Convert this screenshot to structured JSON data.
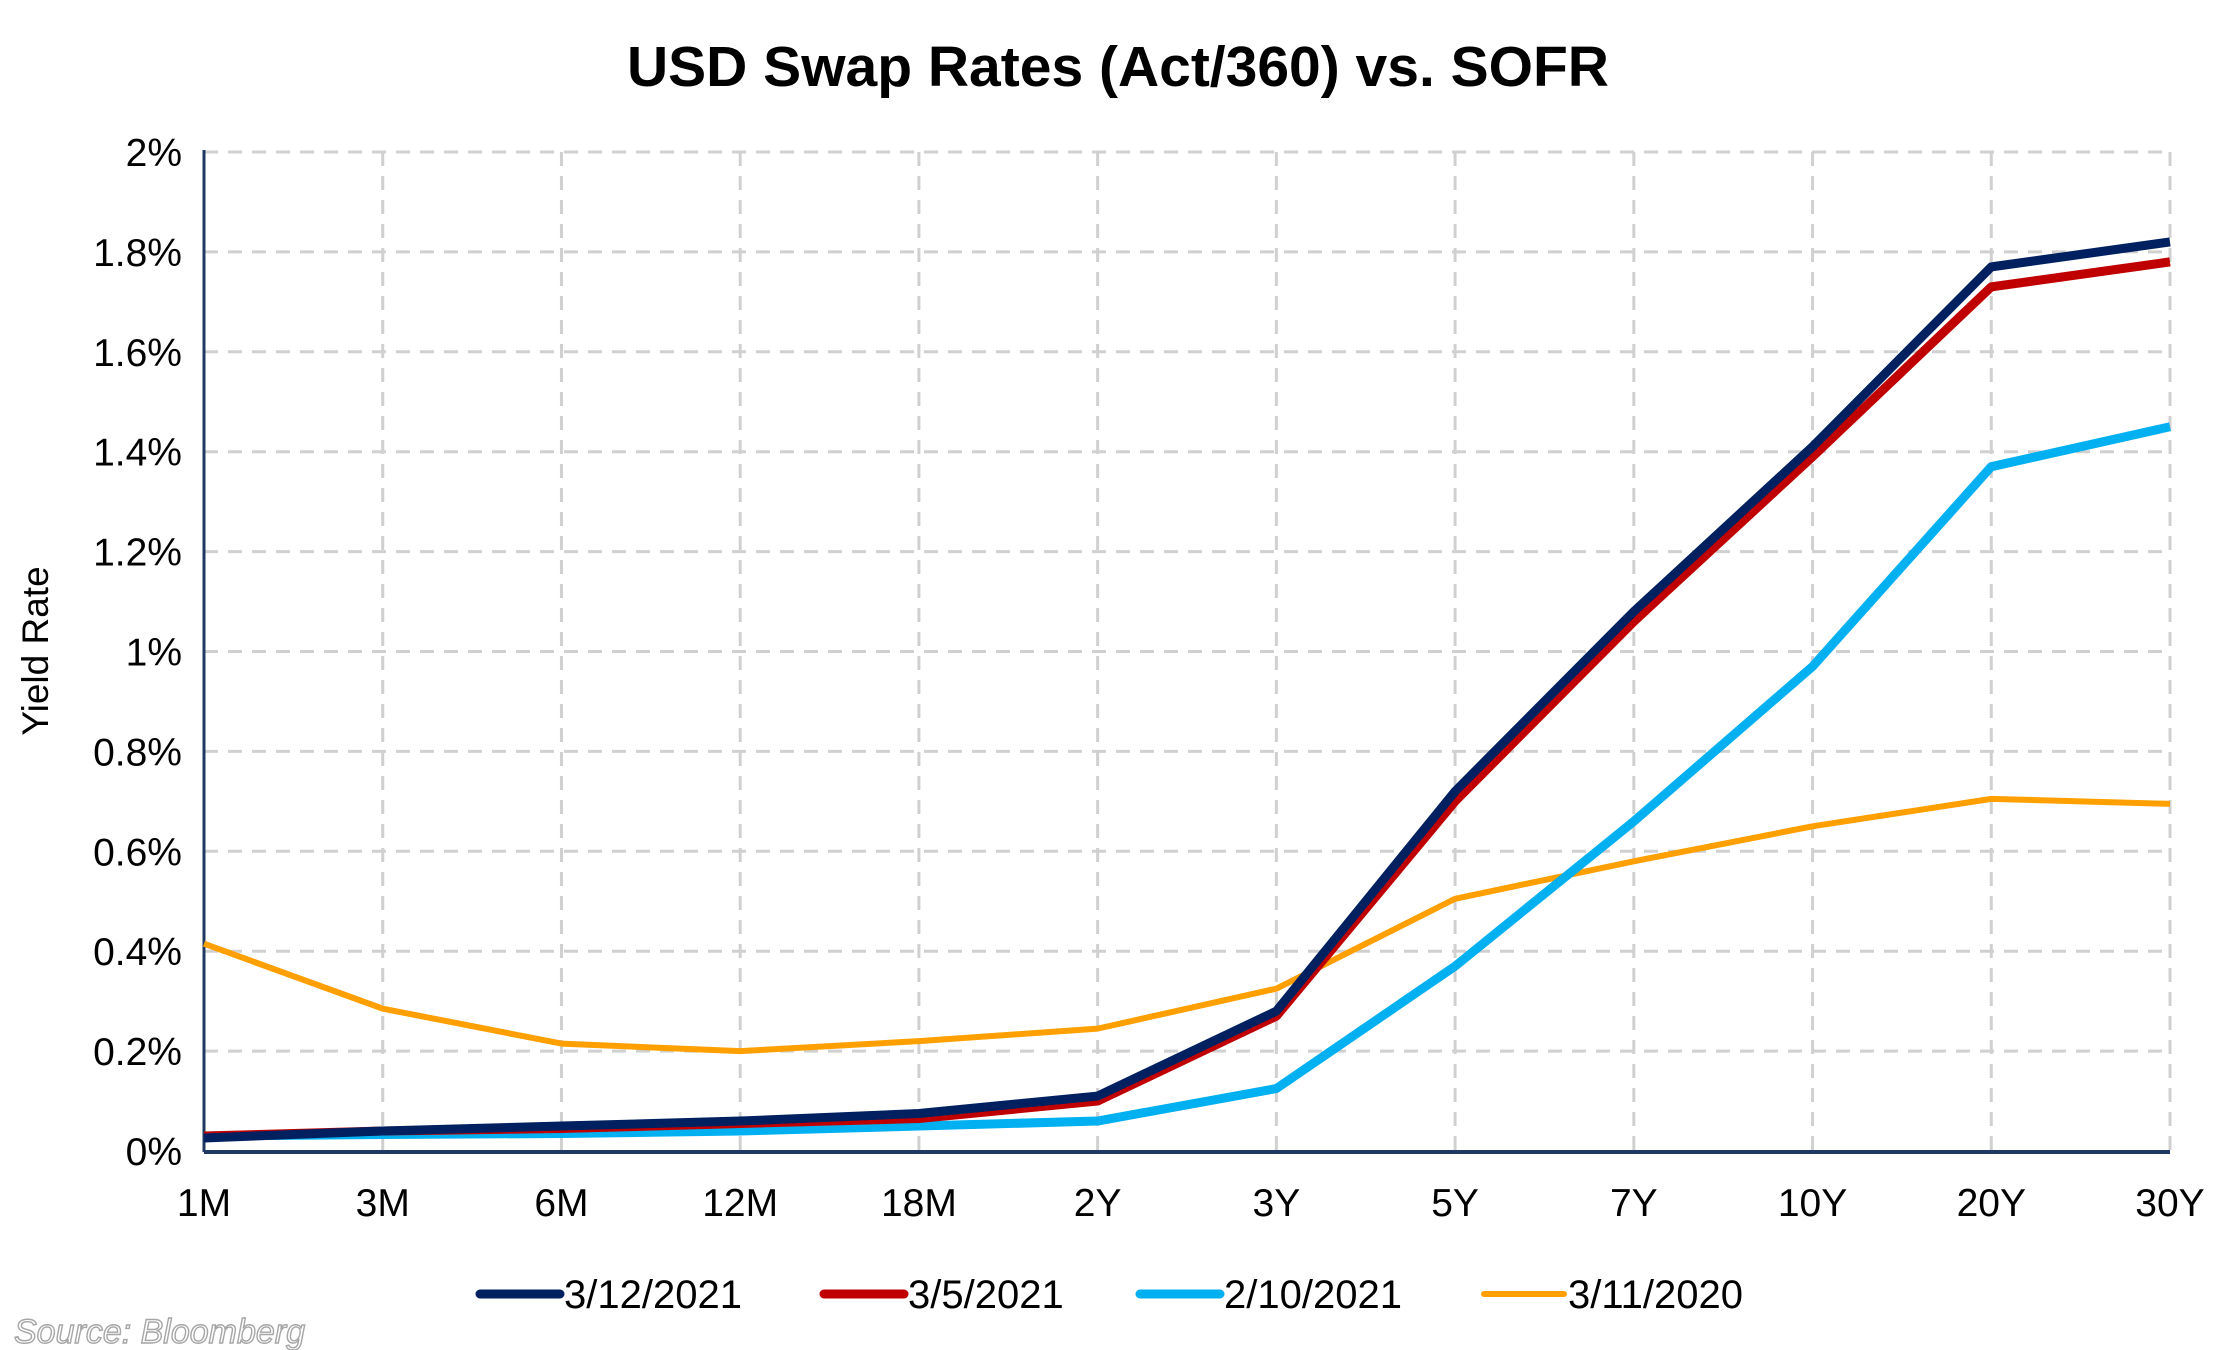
{
  "chart_data": {
    "type": "line",
    "title": "USD Swap Rates (Act/360) vs. SOFR",
    "xlabel": "",
    "ylabel": "Yield Rate",
    "categories": [
      "1M",
      "3M",
      "6M",
      "12M",
      "18M",
      "2Y",
      "3Y",
      "5Y",
      "7Y",
      "10Y",
      "20Y",
      "30Y"
    ],
    "ylim": [
      0,
      2
    ],
    "yticks": [
      0,
      0.2,
      0.4,
      0.6,
      0.8,
      1,
      1.2,
      1.4,
      1.6,
      1.8,
      2
    ],
    "ytick_labels": [
      "0%",
      "0.2%",
      "0.4%",
      "0.6%",
      "0.8%",
      "1%",
      "1.2%",
      "1.4%",
      "1.6%",
      "1.8%",
      "2%"
    ],
    "grid": true,
    "legend_position": "bottom",
    "series": [
      {
        "name": "3/12/2021",
        "color": "#002060",
        "values": [
          0.026,
          0.04,
          0.05,
          0.06,
          0.075,
          0.11,
          0.28,
          0.72,
          1.08,
          1.41,
          1.77,
          1.82
        ]
      },
      {
        "name": "3/5/2021",
        "color": "#C00000",
        "values": [
          0.03,
          0.04,
          0.045,
          0.055,
          0.065,
          0.1,
          0.27,
          0.7,
          1.06,
          1.39,
          1.73,
          1.78
        ]
      },
      {
        "name": "2/10/2021",
        "color": "#00B0F0",
        "values": [
          0.03,
          0.033,
          0.035,
          0.04,
          0.05,
          0.06,
          0.125,
          0.37,
          0.66,
          0.97,
          1.37,
          1.45
        ]
      },
      {
        "name": "3/11/2020",
        "color": "#FFA000",
        "values": [
          0.415,
          0.285,
          0.215,
          0.2,
          0.22,
          0.245,
          0.325,
          0.505,
          0.58,
          0.65,
          0.705,
          0.695
        ]
      }
    ],
    "annotations": [
      "Source: Bloomberg"
    ]
  },
  "source_note": "Source: Bloomberg"
}
